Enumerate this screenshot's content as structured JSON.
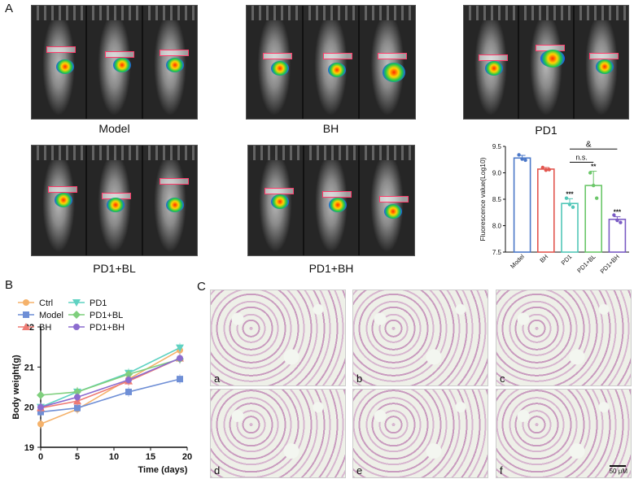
{
  "panel_letters": {
    "a": "A",
    "b": "B",
    "c": "C"
  },
  "imaging_groups": [
    {
      "label": "Model"
    },
    {
      "label": "BH"
    },
    {
      "label": "PD1"
    },
    {
      "label": "PD1+BL"
    },
    {
      "label": "PD1+BH"
    }
  ],
  "chart_data": [
    {
      "type": "bar",
      "ylabel": "Fluorescence value(Log10)",
      "ylim": [
        7.5,
        9.5
      ],
      "yticks": [
        "7.5",
        "8.0",
        "8.5",
        "9.0",
        "9.5"
      ],
      "categories": [
        "Model",
        "BH",
        "PD1",
        "PD1+BL",
        "PD1+BH"
      ],
      "values": [
        9.28,
        9.07,
        8.42,
        8.76,
        8.12
      ],
      "errors": [
        0.05,
        0.03,
        0.09,
        0.27,
        0.05
      ],
      "points": [
        [
          9.34,
          9.26,
          9.24
        ],
        [
          9.1,
          9.05,
          9.06
        ],
        [
          8.52,
          8.4,
          8.35
        ],
        [
          9.0,
          8.76,
          8.52
        ],
        [
          8.2,
          8.1,
          8.06
        ]
      ],
      "colors": [
        "#4b78c8",
        "#e2564f",
        "#52c7b8",
        "#6cc76a",
        "#7a5bc4"
      ],
      "significance": [
        "",
        "",
        "***",
        "**",
        "***"
      ],
      "comparisons": [
        {
          "label": "n.s."
        },
        {
          "label": "&"
        }
      ],
      "grid": false
    },
    {
      "type": "line",
      "xlabel": "Time (days)",
      "ylabel": "Body weight(g)",
      "x": [
        0,
        5,
        12,
        19
      ],
      "xlim": [
        0,
        20
      ],
      "ylim": [
        19,
        22
      ],
      "xticks": [
        "0",
        "5",
        "10",
        "15",
        "20"
      ],
      "yticks": [
        "19",
        "20",
        "21",
        "22"
      ],
      "series": [
        {
          "name": "Ctrl",
          "values": [
            19.58,
            19.95,
            20.7,
            21.42
          ],
          "color": "#f5b26b",
          "marker": "circle"
        },
        {
          "name": "Model",
          "values": [
            19.88,
            19.98,
            20.38,
            20.7
          ],
          "color": "#6f8fd6",
          "marker": "square"
        },
        {
          "name": "BH",
          "values": [
            19.98,
            20.15,
            20.65,
            21.22
          ],
          "color": "#ef7b74",
          "marker": "triangle"
        },
        {
          "name": "PD1",
          "values": [
            20.0,
            20.38,
            20.85,
            21.48
          ],
          "color": "#5fd2c2",
          "marker": "triangle-down"
        },
        {
          "name": "PD1+BL",
          "values": [
            20.3,
            20.38,
            20.82,
            21.2
          ],
          "color": "#7fcf7d",
          "marker": "diamond"
        },
        {
          "name": "PD1+BH",
          "values": [
            20.0,
            20.25,
            20.68,
            21.22
          ],
          "color": "#8c6ccf",
          "marker": "circle"
        }
      ],
      "legend": "top-left",
      "grid": false
    }
  ],
  "histology": {
    "labels": [
      "a",
      "b",
      "c",
      "d",
      "e",
      "f"
    ],
    "scale_bar": "50 μM"
  }
}
